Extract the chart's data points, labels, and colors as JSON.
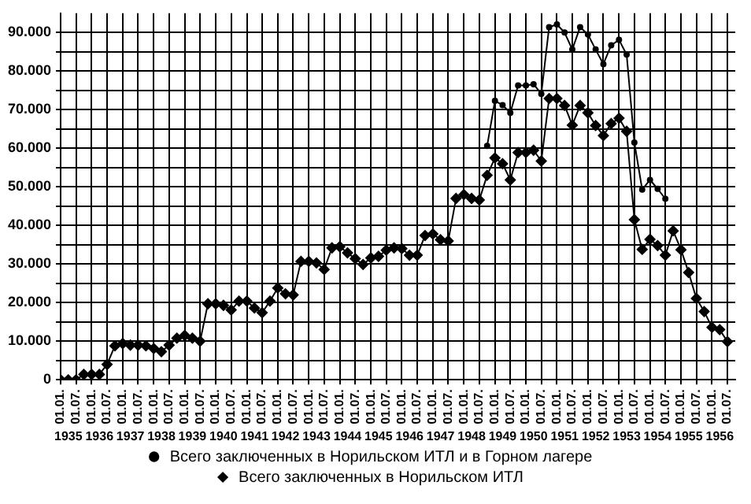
{
  "chart_data": {
    "type": "line",
    "x": [
      "1935-01-01",
      "1935-04-01",
      "1935-07-01",
      "1935-10-01",
      "1936-01-01",
      "1936-04-01",
      "1936-07-01",
      "1936-10-01",
      "1937-01-01",
      "1937-04-01",
      "1937-07-01",
      "1937-10-01",
      "1938-01-01",
      "1938-04-01",
      "1938-07-01",
      "1938-10-01",
      "1939-01-01",
      "1939-04-01",
      "1939-07-01",
      "1939-10-01",
      "1940-01-01",
      "1940-04-01",
      "1940-07-01",
      "1940-10-01",
      "1941-01-01",
      "1941-04-01",
      "1941-07-01",
      "1941-10-01",
      "1942-01-01",
      "1942-04-01",
      "1942-07-01",
      "1942-10-01",
      "1943-01-01",
      "1943-04-01",
      "1943-07-01",
      "1943-10-01",
      "1944-01-01",
      "1944-04-01",
      "1944-07-01",
      "1944-10-01",
      "1945-01-01",
      "1945-04-01",
      "1945-07-01",
      "1945-10-01",
      "1946-01-01",
      "1946-04-01",
      "1946-07-01",
      "1946-10-01",
      "1947-01-01",
      "1947-04-01",
      "1947-07-01",
      "1947-10-01",
      "1948-01-01",
      "1948-04-01",
      "1948-07-01",
      "1948-10-01",
      "1949-01-01",
      "1949-04-01",
      "1949-07-01",
      "1949-10-01",
      "1950-01-01",
      "1950-04-01",
      "1950-07-01",
      "1950-10-01",
      "1951-01-01",
      "1951-04-01",
      "1951-07-01",
      "1951-10-01",
      "1952-01-01",
      "1952-04-01",
      "1952-07-01",
      "1952-10-01",
      "1953-01-01",
      "1953-04-01",
      "1953-07-01",
      "1953-10-01",
      "1954-01-01",
      "1954-04-01",
      "1954-07-01",
      "1954-10-01",
      "1955-01-01",
      "1955-04-01",
      "1955-07-01",
      "1955-10-01",
      "1956-01-01",
      "1956-04-01",
      "1956-07-01"
    ],
    "series": [
      {
        "name": "Всего заключенных в Норильском ИТЛ и в Горном лагере",
        "color": "#000000",
        "marker": "circle",
        "values": [
          null,
          null,
          null,
          null,
          null,
          null,
          null,
          null,
          null,
          null,
          null,
          null,
          null,
          null,
          null,
          null,
          null,
          null,
          null,
          null,
          null,
          null,
          null,
          null,
          null,
          null,
          null,
          null,
          null,
          null,
          null,
          null,
          null,
          null,
          null,
          null,
          null,
          null,
          null,
          null,
          null,
          null,
          null,
          null,
          null,
          null,
          null,
          null,
          null,
          null,
          null,
          null,
          null,
          null,
          null,
          60600,
          72300,
          71200,
          69200,
          76300,
          76300,
          76600,
          74100,
          91400,
          92100,
          90000,
          85600,
          91400,
          89500,
          85600,
          81800,
          86700,
          88100,
          84300,
          61500,
          49300,
          51800,
          49500,
          46900,
          null,
          null,
          null,
          null,
          null,
          null,
          null,
          null
        ]
      },
      {
        "name": "Всего заключенных в Норильском ИТЛ",
        "color": "#000000",
        "marker": "diamond",
        "values": [
          0,
          0,
          0,
          1400,
          1400,
          1400,
          4000,
          8800,
          9400,
          9000,
          9000,
          8800,
          8100,
          7300,
          9000,
          10800,
          11500,
          10800,
          10000,
          19700,
          19700,
          19300,
          18100,
          20400,
          20400,
          18600,
          17400,
          20400,
          23800,
          22300,
          22000,
          30700,
          30700,
          30300,
          28600,
          34200,
          34500,
          32900,
          31400,
          29900,
          31600,
          32000,
          33600,
          34200,
          34000,
          32300,
          32300,
          37400,
          37800,
          36300,
          36000,
          47000,
          48000,
          47000,
          46600,
          53000,
          57500,
          56000,
          51800,
          58900,
          58900,
          59500,
          56700,
          72900,
          72900,
          71100,
          66000,
          71100,
          69200,
          65900,
          63300,
          66400,
          67800,
          64400,
          41500,
          33800,
          36400,
          34800,
          32300,
          38600,
          33700,
          27800,
          21100,
          17700,
          13600,
          13000,
          9900
        ]
      }
    ],
    "xlim": [
      "1935-01-01",
      "1956-10-01"
    ],
    "xticks": [
      {
        "value": "1935-01-01",
        "label": "01.01."
      },
      {
        "value": "1935-07-01",
        "label": "01.07."
      },
      {
        "value": "1936-01-01",
        "label": "01.01."
      },
      {
        "value": "1936-07-01",
        "label": "01.07."
      },
      {
        "value": "1937-01-01",
        "label": "01.01."
      },
      {
        "value": "1937-07-01",
        "label": "01.07."
      },
      {
        "value": "1938-01-01",
        "label": "01.01."
      },
      {
        "value": "1938-07-01",
        "label": "01.07."
      },
      {
        "value": "1939-01-01",
        "label": "01.01."
      },
      {
        "value": "1939-07-01",
        "label": "01.07."
      },
      {
        "value": "1940-01-01",
        "label": "01.01."
      },
      {
        "value": "1940-07-01",
        "label": "01.07."
      },
      {
        "value": "1941-01-01",
        "label": "01.01."
      },
      {
        "value": "1941-07-01",
        "label": "01.07."
      },
      {
        "value": "1942-01-01",
        "label": "01.01."
      },
      {
        "value": "1942-07-01",
        "label": "01.07."
      },
      {
        "value": "1943-01-01",
        "label": "01.01."
      },
      {
        "value": "1943-07-01",
        "label": "01.07."
      },
      {
        "value": "1944-01-01",
        "label": "01.01."
      },
      {
        "value": "1944-07-01",
        "label": "01.07."
      },
      {
        "value": "1945-01-01",
        "label": "01.01."
      },
      {
        "value": "1945-07-01",
        "label": "01.07."
      },
      {
        "value": "1946-01-01",
        "label": "01.01."
      },
      {
        "value": "1946-07-01",
        "label": "01.07."
      },
      {
        "value": "1947-01-01",
        "label": "01.01."
      },
      {
        "value": "1947-07-01",
        "label": "01.07."
      },
      {
        "value": "1948-01-01",
        "label": "01.01."
      },
      {
        "value": "1948-07-01",
        "label": "01.07."
      },
      {
        "value": "1949-01-01",
        "label": "01.01."
      },
      {
        "value": "1949-07-01",
        "label": "01.07."
      },
      {
        "value": "1950-01-01",
        "label": "01.01."
      },
      {
        "value": "1950-07-01",
        "label": "01.07."
      },
      {
        "value": "1951-01-01",
        "label": "01.01."
      },
      {
        "value": "1951-07-01",
        "label": "01.07."
      },
      {
        "value": "1952-01-01",
        "label": "01.01."
      },
      {
        "value": "1952-07-01",
        "label": "01.07."
      },
      {
        "value": "1953-01-01",
        "label": "01.01."
      },
      {
        "value": "1953-07-01",
        "label": "01.07."
      },
      {
        "value": "1954-01-01",
        "label": "01.01."
      },
      {
        "value": "1954-07-01",
        "label": "01.07."
      },
      {
        "value": "1955-01-01",
        "label": "01.01."
      },
      {
        "value": "1955-07-01",
        "label": "01.07."
      },
      {
        "value": "1956-01-01",
        "label": "01.01."
      },
      {
        "value": "1956-07-01",
        "label": "01.07."
      }
    ],
    "x2lim": [
      "1935-01-01",
      "1956-10-01"
    ],
    "x2ticks": [
      {
        "value": "1935-04-01",
        "label": "1935"
      },
      {
        "value": "1936-04-01",
        "label": "1936"
      },
      {
        "value": "1937-04-01",
        "label": "1937"
      },
      {
        "value": "1938-04-01",
        "label": "1938"
      },
      {
        "value": "1939-04-01",
        "label": "1939"
      },
      {
        "value": "1940-04-01",
        "label": "1940"
      },
      {
        "value": "1941-04-01",
        "label": "1941"
      },
      {
        "value": "1942-04-01",
        "label": "1942"
      },
      {
        "value": "1943-04-01",
        "label": "1943"
      },
      {
        "value": "1944-04-01",
        "label": "1944"
      },
      {
        "value": "1945-04-01",
        "label": "1945"
      },
      {
        "value": "1946-04-01",
        "label": "1946"
      },
      {
        "value": "1947-04-01",
        "label": "1947"
      },
      {
        "value": "1948-04-01",
        "label": "1948"
      },
      {
        "value": "1949-04-01",
        "label": "1949"
      },
      {
        "value": "1950-04-01",
        "label": "1950"
      },
      {
        "value": "1951-04-01",
        "label": "1951"
      },
      {
        "value": "1952-04-01",
        "label": "1952"
      },
      {
        "value": "1953-04-01",
        "label": "1953"
      },
      {
        "value": "1954-04-01",
        "label": "1954"
      },
      {
        "value": "1955-04-01",
        "label": "1955"
      },
      {
        "value": "1956-04-01",
        "label": "1956"
      }
    ],
    "ylim": [
      0,
      95000
    ],
    "yticks": [
      {
        "value": 0,
        "label": "0"
      },
      {
        "value": 5000,
        "label": null
      },
      {
        "value": 10000,
        "label": "10.000"
      },
      {
        "value": 15000,
        "label": null
      },
      {
        "value": 20000,
        "label": "20.000"
      },
      {
        "value": 25000,
        "label": null
      },
      {
        "value": 30000,
        "label": "30.000"
      },
      {
        "value": 35000,
        "label": null
      },
      {
        "value": 40000,
        "label": "40.000"
      },
      {
        "value": 45000,
        "label": null
      },
      {
        "value": 50000,
        "label": "50.000"
      },
      {
        "value": 55000,
        "label": null
      },
      {
        "value": 60000,
        "label": "60.000"
      },
      {
        "value": 65000,
        "label": null
      },
      {
        "value": 70000,
        "label": "70.000"
      },
      {
        "value": 75000,
        "label": null
      },
      {
        "value": 80000,
        "label": "80.000"
      },
      {
        "value": 85000,
        "label": null
      },
      {
        "value": 90000,
        "label": "90.000"
      }
    ],
    "grid": true,
    "legend": "bottom",
    "line_style": "solid"
  }
}
